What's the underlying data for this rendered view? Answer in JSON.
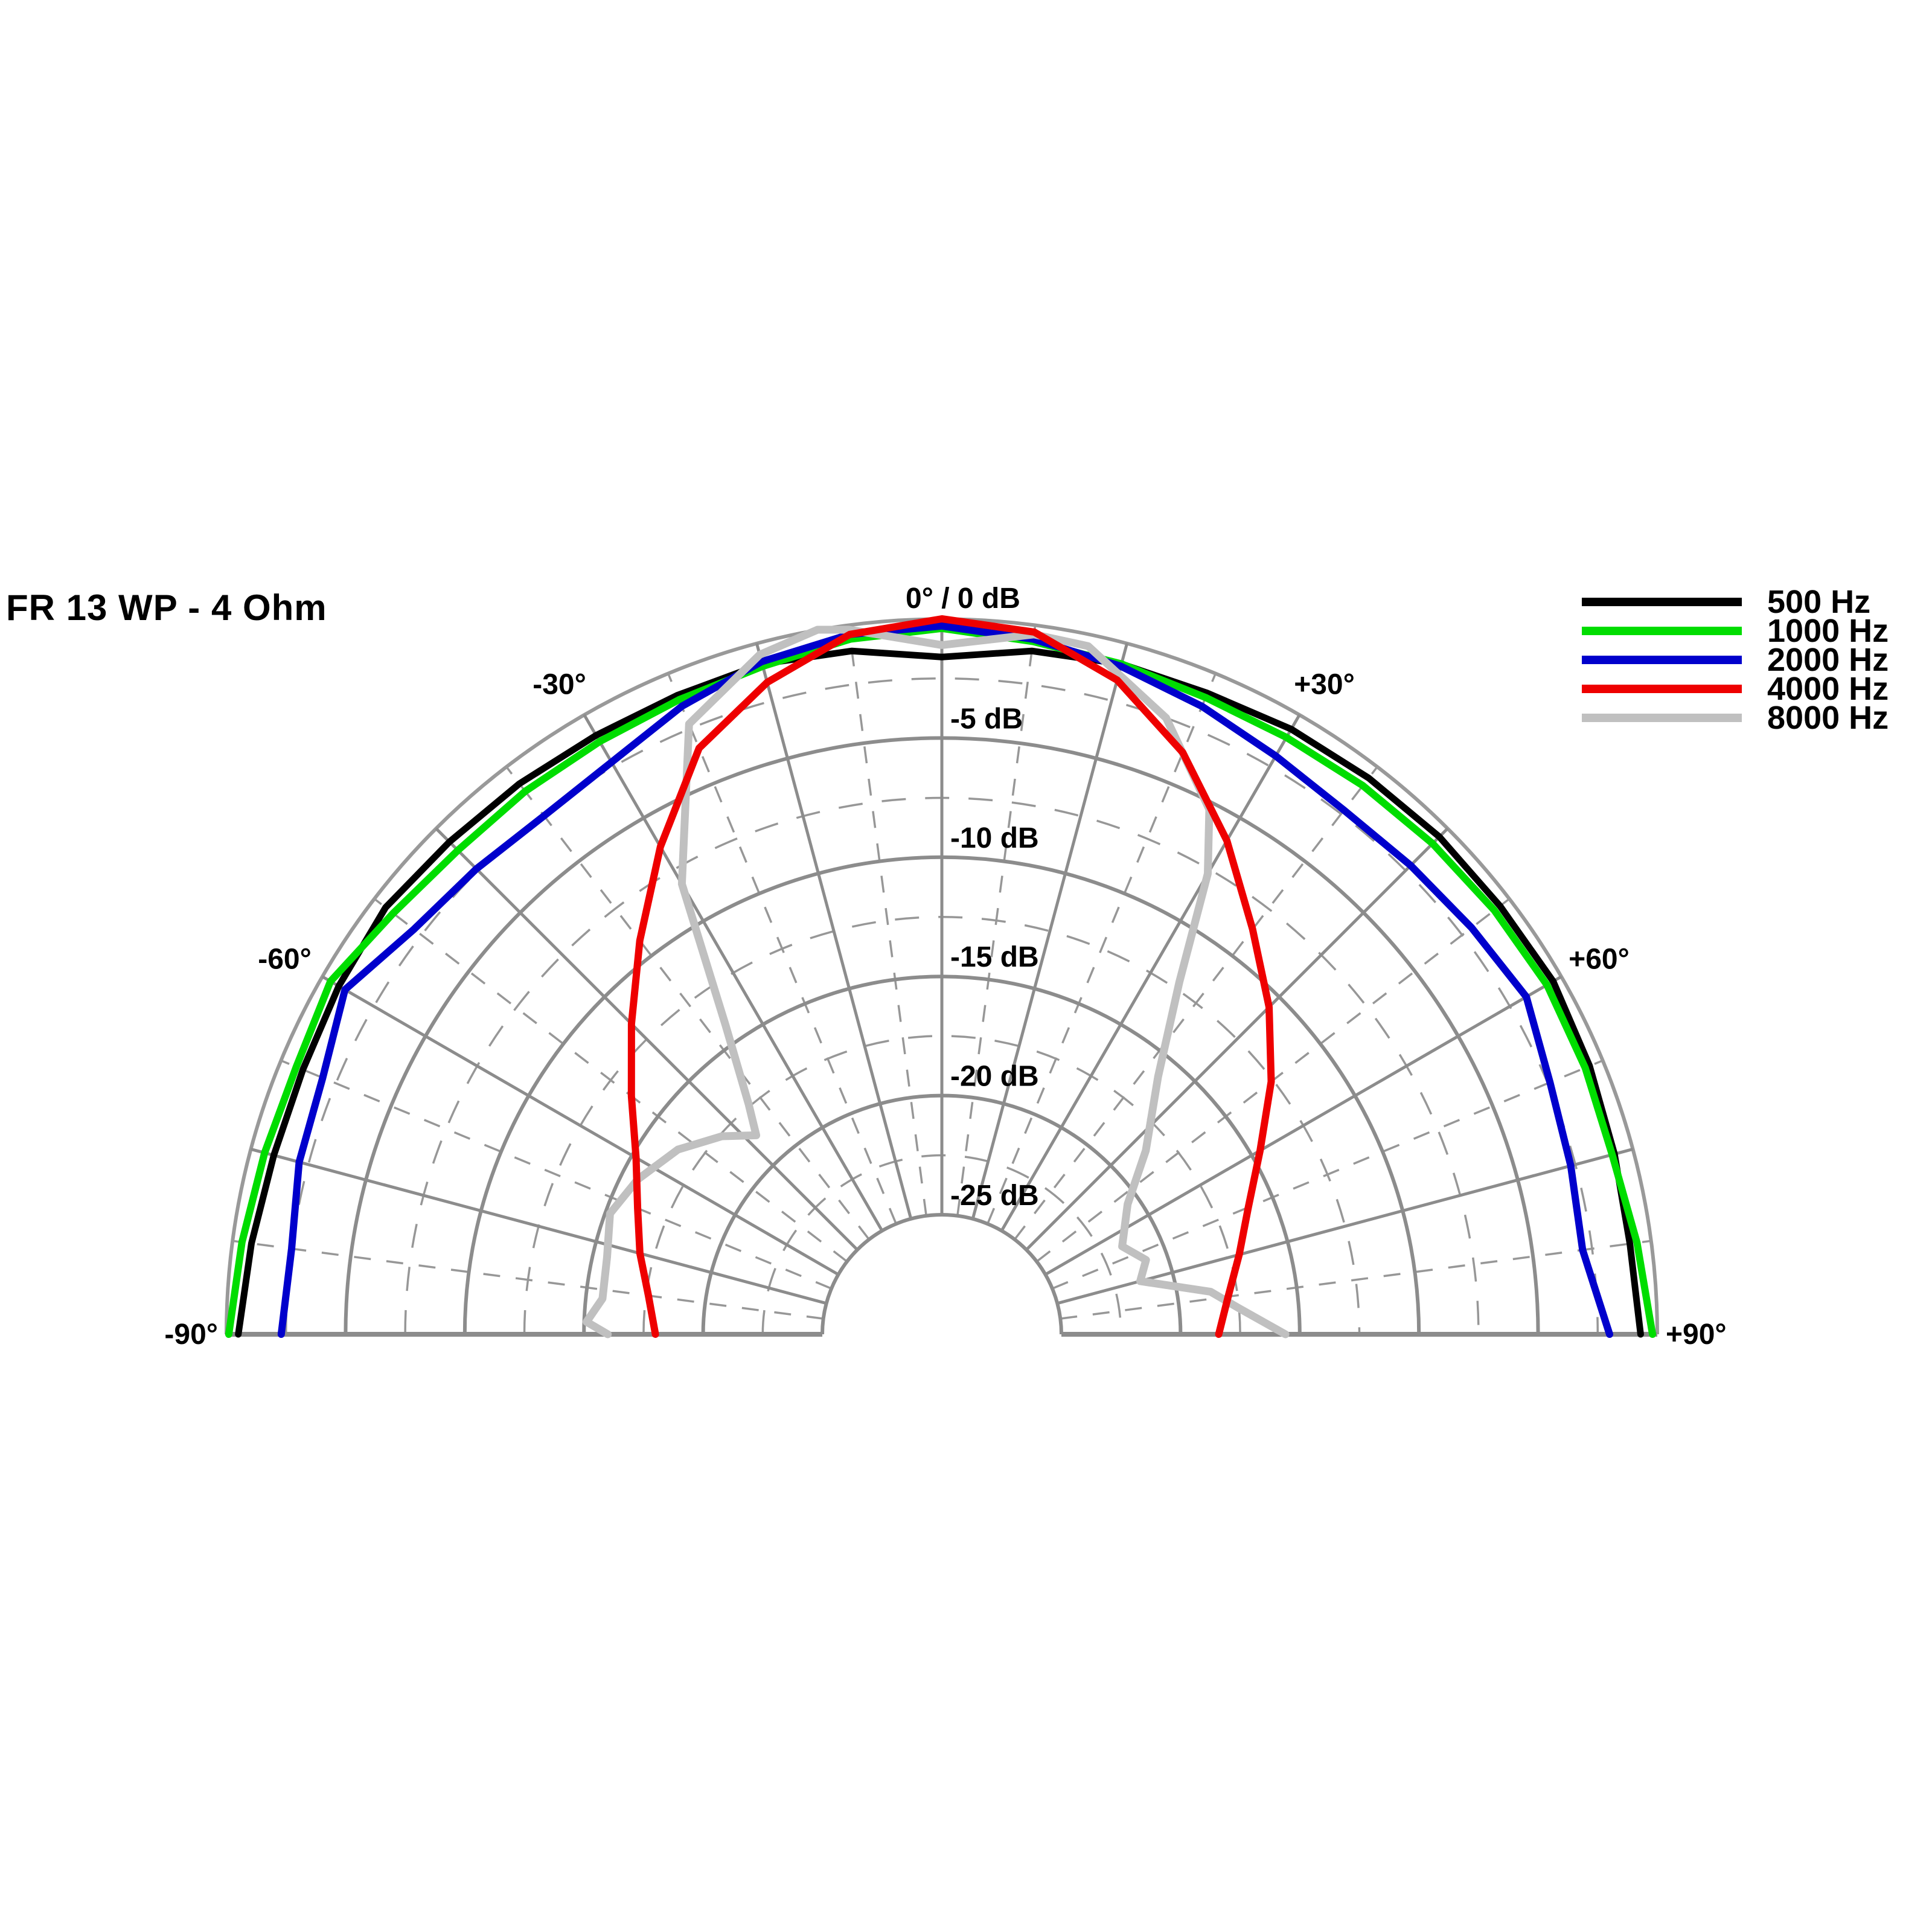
{
  "title": "FR 13 WP - 4 Ohm",
  "legend": {
    "items": [
      {
        "label": "500 Hz",
        "color": "#000000"
      },
      {
        "label": "1000 Hz",
        "color": "#00dd00"
      },
      {
        "label": "2000 Hz",
        "color": "#0000cc"
      },
      {
        "label": "4000 Hz",
        "color": "#ee0000"
      },
      {
        "label": "8000 Hz",
        "color": "#c0c0c0"
      }
    ]
  },
  "colors": {
    "background": "#ffffff",
    "text": "#000000",
    "grid_solid": "#8c8c8c",
    "grid_dashed": "#979797",
    "outer_boundary": "#999999"
  },
  "chart_data": {
    "type": "line",
    "polar": true,
    "title": "FR 13 WP - 4 Ohm",
    "description": "Loudspeaker horizontal directivity pattern, half-polar plot, angle -90..+90 degrees from on-axis, level 0 to -25 dB",
    "angle_axis": {
      "min": -90,
      "max": 90,
      "solid_step": 15,
      "dashed_step": 7.5,
      "labels": [
        {
          "angle": 0,
          "text": "0° / 0 dB"
        },
        {
          "angle": -30,
          "text": "-30°"
        },
        {
          "angle": 30,
          "text": "+30°"
        },
        {
          "angle": -60,
          "text": "-60°"
        },
        {
          "angle": 60,
          "text": "+60°"
        },
        {
          "angle": -90,
          "text": "-90°"
        },
        {
          "angle": 90,
          "text": "+90°"
        }
      ]
    },
    "radial_axis": {
      "unit": "dB",
      "min": -25,
      "max": 0,
      "solid_step": 5,
      "dashed_step": 2.5,
      "tick_labels": [
        {
          "db": -5,
          "text": "-5 dB"
        },
        {
          "db": -10,
          "text": "-10 dB"
        },
        {
          "db": -15,
          "text": "-15 dB"
        },
        {
          "db": -20,
          "text": "-20 dB"
        },
        {
          "db": -25,
          "text": "-25 dB"
        }
      ]
    },
    "legend_position": "top-right",
    "series": [
      {
        "name": "500 Hz",
        "color": "#000000",
        "width": 11,
        "points": [
          [
            -90,
            -0.5
          ],
          [
            -82.5,
            -0.8
          ],
          [
            -75,
            -1.0
          ],
          [
            -67.5,
            -1.0
          ],
          [
            -60,
            -0.8
          ],
          [
            -52.5,
            -0.6
          ],
          [
            -45,
            -0.8
          ],
          [
            -37.5,
            -0.9
          ],
          [
            -30,
            -1.0
          ],
          [
            -22.5,
            -1.0
          ],
          [
            -15,
            -0.9
          ],
          [
            -7.5,
            -1.1
          ],
          [
            0,
            -1.6
          ],
          [
            7.5,
            -1.1
          ],
          [
            15,
            -0.9
          ],
          [
            22.5,
            -0.9
          ],
          [
            30,
            -0.7
          ],
          [
            37.5,
            -0.6
          ],
          [
            45,
            -0.5
          ],
          [
            52.5,
            -0.5
          ],
          [
            60,
            -0.4
          ],
          [
            67.5,
            -0.6
          ],
          [
            75,
            -0.8
          ],
          [
            82.5,
            -0.9
          ],
          [
            90,
            -0.7
          ]
        ]
      },
      {
        "name": "1000 Hz",
        "color": "#00dd00",
        "width": 12,
        "points": [
          [
            -90,
            -0.1
          ],
          [
            -82.5,
            -0.4
          ],
          [
            -75,
            -0.6
          ],
          [
            -67.5,
            -0.7
          ],
          [
            -60,
            -0.4
          ],
          [
            -52.5,
            -1.0
          ],
          [
            -45,
            -1.3
          ],
          [
            -37.5,
            -1.3
          ],
          [
            -30,
            -1.3
          ],
          [
            -22.5,
            -1.2
          ],
          [
            -15,
            -1.0
          ],
          [
            -7.5,
            -0.6
          ],
          [
            0,
            -0.4
          ],
          [
            7.5,
            -0.7
          ],
          [
            15,
            -0.9
          ],
          [
            22.5,
            -1.1
          ],
          [
            30,
            -1.1
          ],
          [
            37.5,
            -1.0
          ],
          [
            45,
            -0.9
          ],
          [
            52.5,
            -0.8
          ],
          [
            60,
            -0.7
          ],
          [
            67.5,
            -0.8
          ],
          [
            75,
            -0.9
          ],
          [
            82.5,
            -0.6
          ],
          [
            90,
            -0.2
          ]
        ]
      },
      {
        "name": "2000 Hz",
        "color": "#0000cc",
        "width": 12,
        "points": [
          [
            -90,
            -2.3
          ],
          [
            -82.5,
            -2.5
          ],
          [
            -75,
            -2.1
          ],
          [
            -67.5,
            -1.9
          ],
          [
            -60,
            -1.1
          ],
          [
            -52.5,
            -2.1
          ],
          [
            -45,
            -2.4
          ],
          [
            -37.5,
            -2.6
          ],
          [
            -30,
            -2.3
          ],
          [
            -22.5,
            -1.5
          ],
          [
            -15,
            -0.8
          ],
          [
            -7.5,
            -0.4
          ],
          [
            0,
            -0.3
          ],
          [
            7.5,
            -0.6
          ],
          [
            15,
            -1.0
          ],
          [
            22.5,
            -1.5
          ],
          [
            30,
            -2.0
          ],
          [
            37.5,
            -2.3
          ],
          [
            45,
            -2.2
          ],
          [
            52.5,
            -2.0
          ],
          [
            60,
            -1.7
          ],
          [
            67.5,
            -2.4
          ],
          [
            75,
            -2.7
          ],
          [
            82.5,
            -2.9
          ],
          [
            90,
            -2.0
          ]
        ]
      },
      {
        "name": "4000 Hz",
        "color": "#ee0000",
        "width": 12,
        "points": [
          [
            -90,
            -18.0
          ],
          [
            -82.5,
            -17.6
          ],
          [
            -75,
            -16.9
          ],
          [
            -67.5,
            -16.2
          ],
          [
            -60,
            -15.2
          ],
          [
            -52.5,
            -13.6
          ],
          [
            -45,
            -11.6
          ],
          [
            -37.5,
            -9.2
          ],
          [
            -30,
            -6.4
          ],
          [
            -22.5,
            -3.4
          ],
          [
            -15,
            -1.7
          ],
          [
            -7.5,
            -0.4
          ],
          [
            0,
            0.0
          ],
          [
            7.5,
            -0.3
          ],
          [
            15,
            -1.6
          ],
          [
            22.5,
            -3.6
          ],
          [
            30,
            -6.1
          ],
          [
            37.5,
            -8.6
          ],
          [
            45,
            -10.6
          ],
          [
            52.5,
            -12.6
          ],
          [
            60,
            -14.6
          ],
          [
            67.5,
            -16.1
          ],
          [
            75,
            -17.1
          ],
          [
            82.5,
            -17.9
          ],
          [
            90,
            -18.4
          ]
        ]
      },
      {
        "name": "8000 Hz",
        "color": "#c0c0c0",
        "width": 13,
        "points": [
          [
            -90,
            -16.0
          ],
          [
            -88,
            -15.1
          ],
          [
            -84,
            -15.7
          ],
          [
            -77,
            -15.6
          ],
          [
            -70,
            -15.2
          ],
          [
            -63,
            -15.7
          ],
          [
            -55,
            -16.5
          ],
          [
            -48,
            -17.6
          ],
          [
            -43,
            -18.6
          ],
          [
            -40,
            -17.4
          ],
          [
            -35,
            -14.2
          ],
          [
            -30,
            -8.2
          ],
          [
            -22.5,
            -2.3
          ],
          [
            -15,
            -0.5
          ],
          [
            -10,
            0.0
          ],
          [
            -7.5,
            -0.2
          ],
          [
            0,
            -1.1
          ],
          [
            7.5,
            -0.4
          ],
          [
            12,
            -0.5
          ],
          [
            20,
            -2.5
          ],
          [
            27,
            -5.3
          ],
          [
            30,
            -7.7
          ],
          [
            34,
            -12.2
          ],
          [
            40,
            -15.9
          ],
          [
            48,
            -18.5
          ],
          [
            55,
            -20.5
          ],
          [
            64,
            -21.6
          ],
          [
            70,
            -20.9
          ],
          [
            75,
            -21.4
          ],
          [
            81,
            -18.6
          ],
          [
            85,
            -17.5
          ],
          [
            90,
            -15.6
          ]
        ]
      }
    ]
  }
}
